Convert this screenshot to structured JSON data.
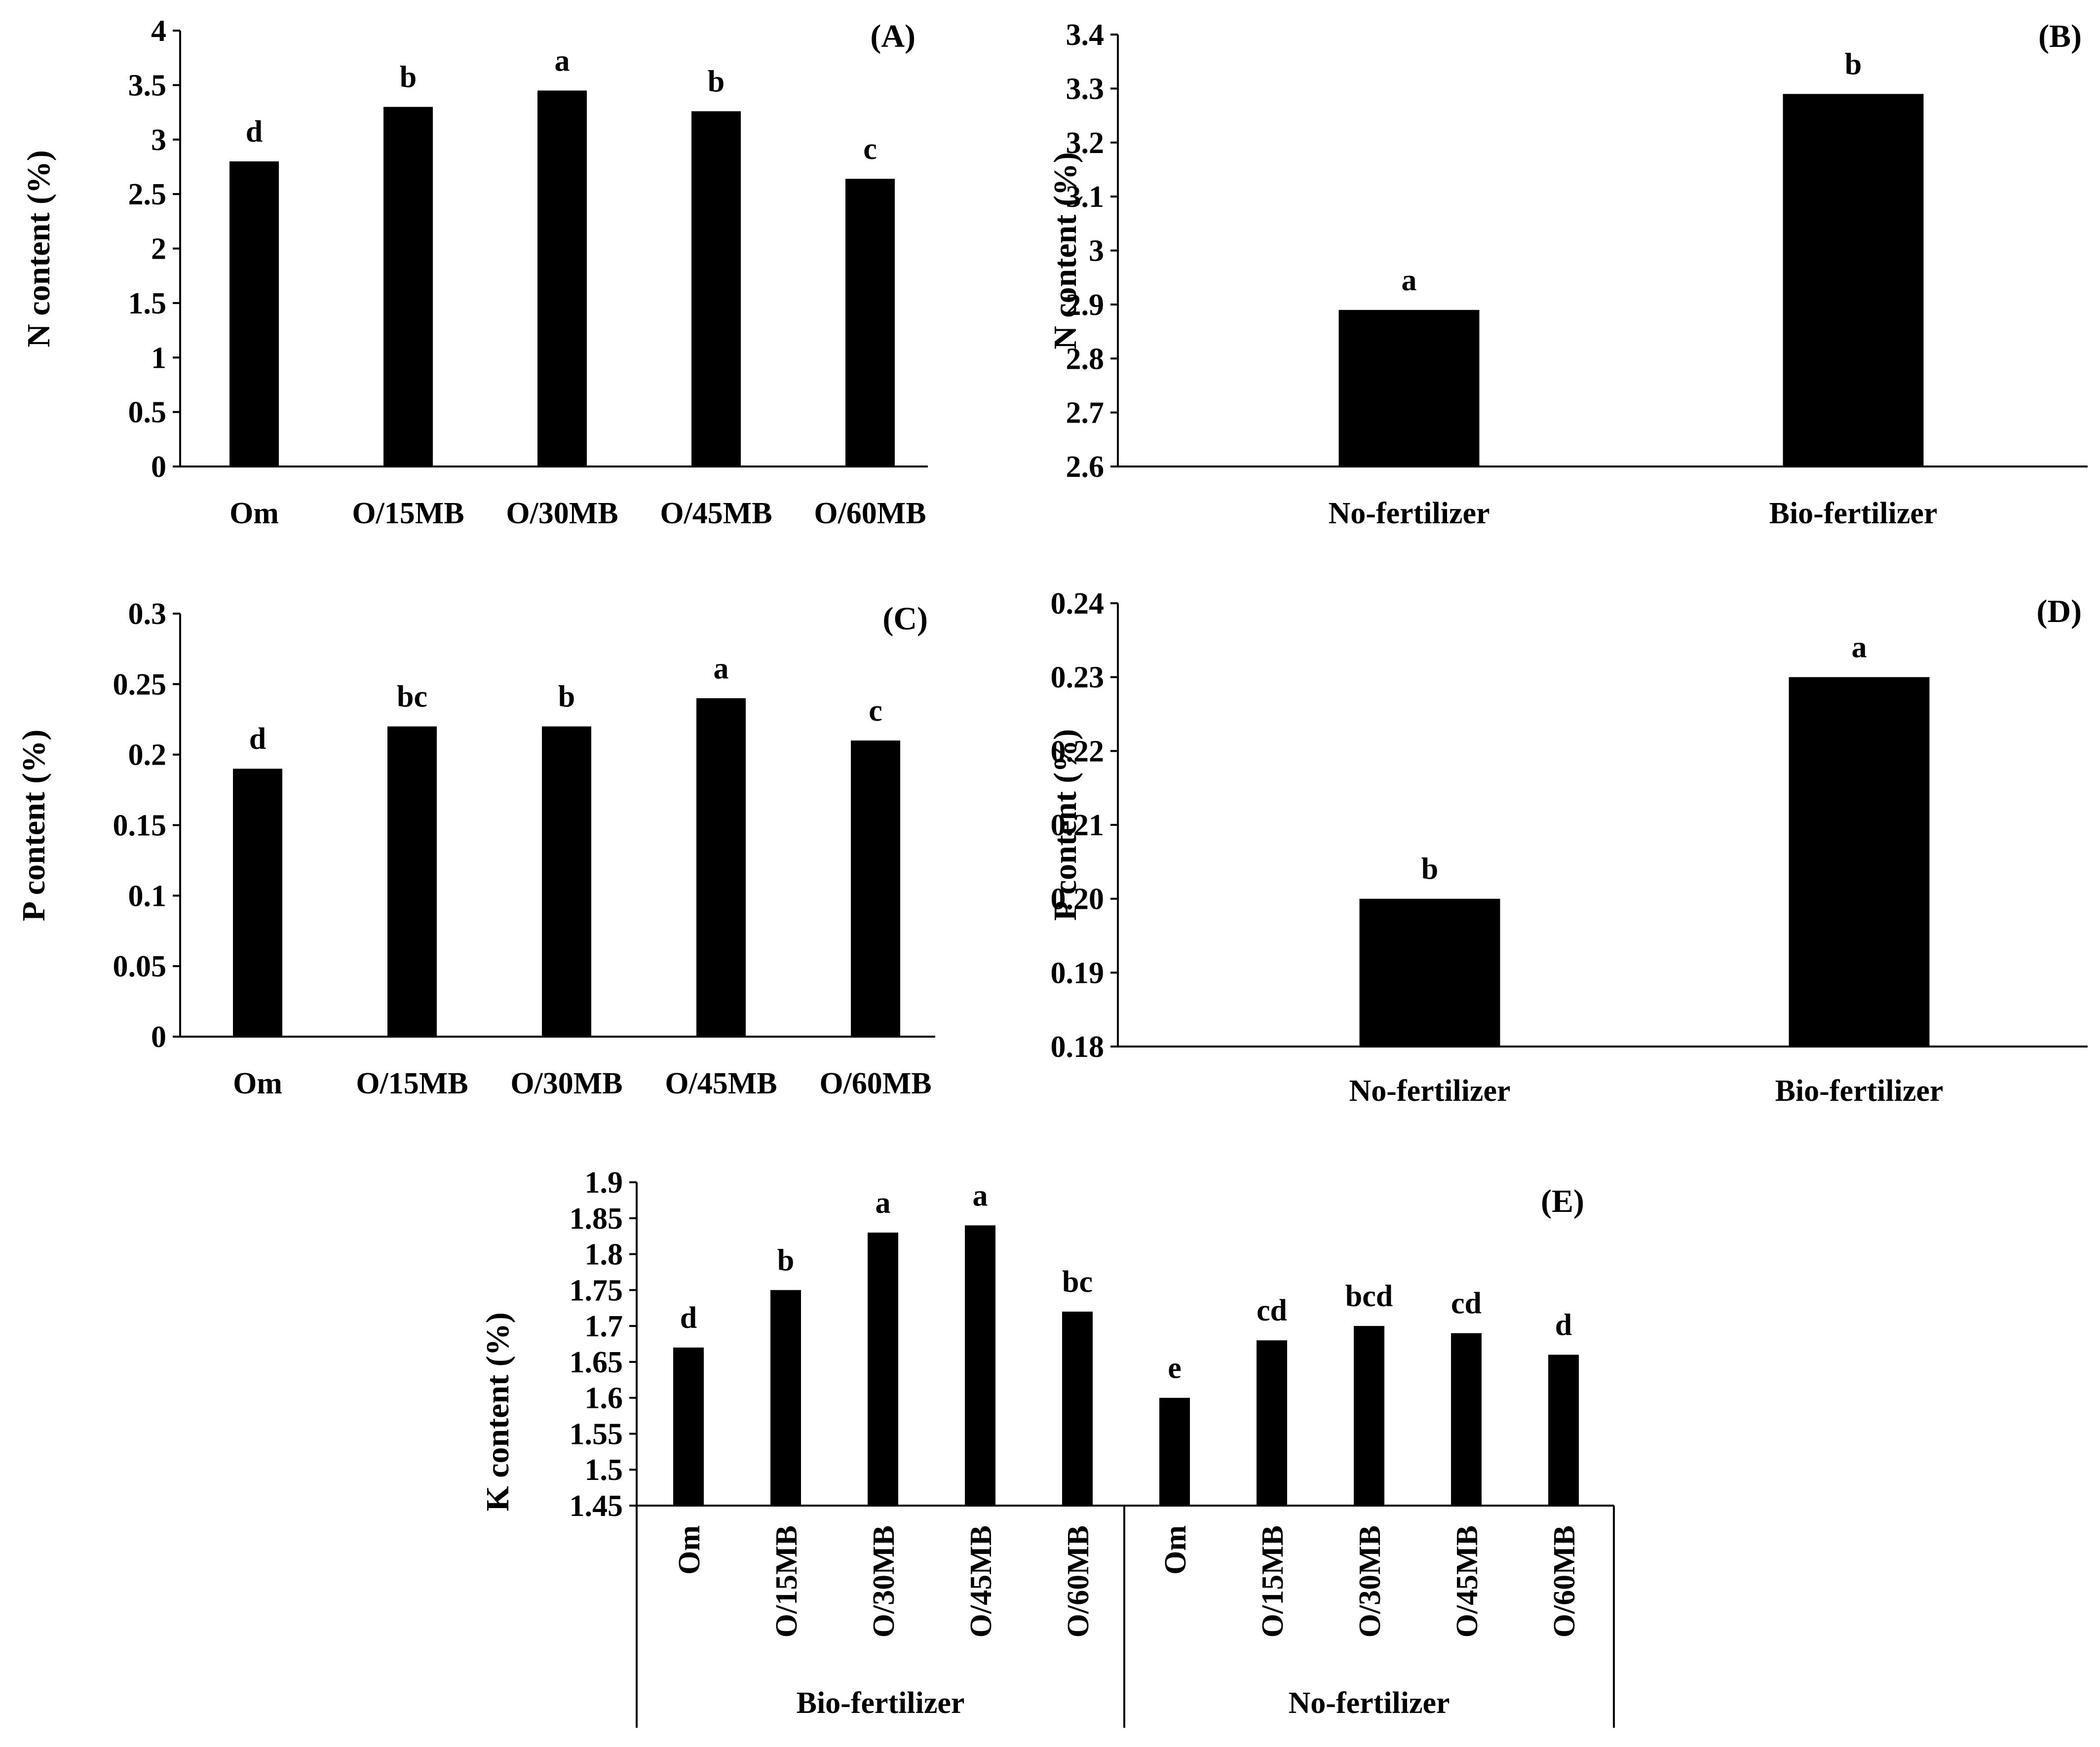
{
  "chart_data": [
    {
      "id": "A",
      "type": "bar",
      "panel_label": "(A)",
      "ylabel": "N content (%)",
      "ylim": [
        0,
        4
      ],
      "yticks": [
        "0",
        "0.5",
        "1",
        "1.5",
        "2",
        "2.5",
        "3",
        "3.5",
        "4"
      ],
      "categories": [
        "Om",
        "O/15MB",
        "O/30MB",
        "O/45MB",
        "O/60MB"
      ],
      "values": [
        2.8,
        3.3,
        3.45,
        3.26,
        2.64
      ],
      "letters": [
        "d",
        "b",
        "a",
        "b",
        "c"
      ],
      "color": "#000000"
    },
    {
      "id": "B",
      "type": "bar",
      "panel_label": "(B)",
      "ylabel": "N content (%)",
      "ylim": [
        2.6,
        3.4
      ],
      "yticks": [
        "2.6",
        "2.7",
        "2.8",
        "2.9",
        "3",
        "3.1",
        "3.2",
        "3.3",
        "3.4"
      ],
      "categories": [
        "No-fertilizer",
        "Bio-fertilizer"
      ],
      "values": [
        2.89,
        3.29
      ],
      "letters": [
        "a",
        "b"
      ],
      "color": "#000000"
    },
    {
      "id": "C",
      "type": "bar",
      "panel_label": "(C)",
      "ylabel": "P content (%)",
      "ylim": [
        0,
        0.3
      ],
      "yticks": [
        "0",
        "0.05",
        "0.1",
        "0.15",
        "0.2",
        "0.25",
        "0.3"
      ],
      "categories": [
        "Om",
        "O/15MB",
        "O/30MB",
        "O/45MB",
        "O/60MB"
      ],
      "values": [
        0.19,
        0.22,
        0.22,
        0.24,
        0.21
      ],
      "letters": [
        "d",
        "bc",
        "b",
        "a",
        "c"
      ],
      "color": "#000000"
    },
    {
      "id": "D",
      "type": "bar",
      "panel_label": "(D)",
      "ylabel": "P content (%)",
      "ylim": [
        0.18,
        0.24
      ],
      "yticks": [
        "0.18",
        "0.19",
        "0.20",
        "0.21",
        "0.22",
        "0.23",
        "0.24"
      ],
      "categories": [
        "No-fertilizer",
        "Bio-fertilizer"
      ],
      "values": [
        0.2,
        0.23
      ],
      "letters": [
        "b",
        "a"
      ],
      "color": "#000000"
    },
    {
      "id": "E",
      "type": "bar",
      "panel_label": "(E)",
      "ylabel": "K content (%)",
      "ylim": [
        1.45,
        1.9
      ],
      "yticks": [
        "1.45",
        "1.5",
        "1.55",
        "1.6",
        "1.65",
        "1.7",
        "1.75",
        "1.8",
        "1.85",
        "1.9"
      ],
      "categories": [
        "Om",
        "O/15MB",
        "O/30MB",
        "O/45MB",
        "O/60MB",
        "Om",
        "O/15MB",
        "O/30MB",
        "O/45MB",
        "O/60MB"
      ],
      "groups": [
        "Bio-fertilizer",
        "No-fertilizer"
      ],
      "values": [
        1.67,
        1.75,
        1.83,
        1.84,
        1.72,
        1.6,
        1.68,
        1.7,
        1.69,
        1.66
      ],
      "letters": [
        "d",
        "b",
        "a",
        "a",
        "bc",
        "e",
        "cd",
        "bcd",
        "cd",
        "d"
      ],
      "color": "#000000"
    }
  ]
}
